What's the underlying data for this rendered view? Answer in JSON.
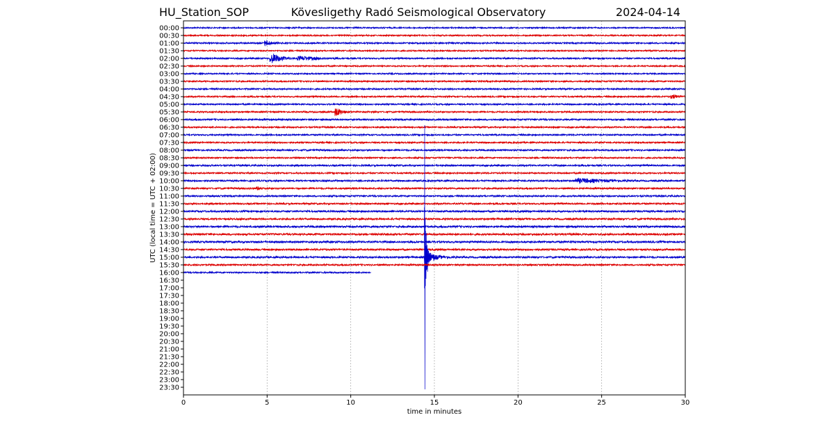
{
  "header": {
    "station": "HU_Station_SOP",
    "observatory": "Kövesligethy Radó Seismological Observatory",
    "date": "2024-04-14"
  },
  "chart_data": {
    "type": "line",
    "title": "Kövesligethy Radó Seismological Observatory",
    "xlabel": "time in minutes",
    "ylabel": "UTC (local time = UTC + 02:00)",
    "xlim": [
      0,
      30
    ],
    "x_ticks": [
      0,
      5,
      10,
      15,
      20,
      25,
      30
    ],
    "vertical_gridlines": [
      5,
      10,
      15,
      20,
      25
    ],
    "row_labels": [
      "00:00",
      "00:30",
      "01:00",
      "01:30",
      "02:00",
      "02:30",
      "03:00",
      "03:30",
      "04:00",
      "04:30",
      "05:00",
      "05:30",
      "06:00",
      "06:30",
      "07:00",
      "07:30",
      "08:00",
      "08:30",
      "09:00",
      "09:30",
      "10:00",
      "10:30",
      "11:00",
      "11:30",
      "12:00",
      "12:30",
      "13:00",
      "13:30",
      "14:00",
      "14:30",
      "15:00",
      "15:30",
      "16:00",
      "16:30",
      "17:00",
      "17:30",
      "18:00",
      "18:30",
      "19:00",
      "19:30",
      "20:00",
      "20:30",
      "21:00",
      "21:30",
      "22:00",
      "22:30",
      "23:00",
      "23:30"
    ],
    "colors": {
      "even_rows": "#0000cc",
      "odd_rows": "#dd0000"
    },
    "series": [
      {
        "start": "00:00",
        "x_end": 30,
        "noise": 0.9
      },
      {
        "start": "00:30",
        "x_end": 30,
        "noise": 0.9
      },
      {
        "start": "01:00",
        "x_end": 30,
        "noise": 1.0,
        "bursts": [
          {
            "x": 5.0,
            "width": 0.8,
            "amp": 3
          }
        ]
      },
      {
        "start": "01:30",
        "x_end": 30,
        "noise": 0.9
      },
      {
        "start": "02:00",
        "x_end": 30,
        "noise": 1.0,
        "bursts": [
          {
            "x": 5.4,
            "width": 1.2,
            "amp": 6
          },
          {
            "x": 7.2,
            "width": 2.0,
            "amp": 2.5
          }
        ]
      },
      {
        "start": "02:30",
        "x_end": 30,
        "noise": 0.9
      },
      {
        "start": "03:00",
        "x_end": 30,
        "noise": 0.9
      },
      {
        "start": "03:30",
        "x_end": 30,
        "noise": 1.0
      },
      {
        "start": "04:00",
        "x_end": 30,
        "noise": 1.0
      },
      {
        "start": "04:30",
        "x_end": 30,
        "noise": 1.0,
        "bursts": [
          {
            "x": 29.3,
            "width": 0.8,
            "amp": 2.5
          }
        ]
      },
      {
        "start": "05:00",
        "x_end": 30,
        "noise": 1.0
      },
      {
        "start": "05:30",
        "x_end": 30,
        "noise": 1.0,
        "bursts": [
          {
            "x": 9.2,
            "width": 0.8,
            "amp": 5
          }
        ]
      },
      {
        "start": "06:00",
        "x_end": 30,
        "noise": 1.1
      },
      {
        "start": "06:30",
        "x_end": 30,
        "noise": 1.0
      },
      {
        "start": "07:00",
        "x_end": 30,
        "noise": 1.0
      },
      {
        "start": "07:30",
        "x_end": 30,
        "noise": 1.0
      },
      {
        "start": "08:00",
        "x_end": 30,
        "noise": 1.1
      },
      {
        "start": "08:30",
        "x_end": 30,
        "noise": 1.0
      },
      {
        "start": "09:00",
        "x_end": 30,
        "noise": 1.1
      },
      {
        "start": "09:30",
        "x_end": 30,
        "noise": 1.0
      },
      {
        "start": "10:00",
        "x_end": 30,
        "noise": 1.1,
        "bursts": [
          {
            "x": 24.0,
            "width": 3.0,
            "amp": 2.5
          }
        ]
      },
      {
        "start": "10:30",
        "x_end": 30,
        "noise": 1.1,
        "bursts": [
          {
            "x": 4.5,
            "width": 0.6,
            "amp": 2
          }
        ]
      },
      {
        "start": "11:00",
        "x_end": 30,
        "noise": 1.1
      },
      {
        "start": "11:30",
        "x_end": 30,
        "noise": 1.1
      },
      {
        "start": "12:00",
        "x_end": 30,
        "noise": 1.2
      },
      {
        "start": "12:30",
        "x_end": 30,
        "noise": 1.2
      },
      {
        "start": "13:00",
        "x_end": 30,
        "noise": 1.3
      },
      {
        "start": "13:30",
        "x_end": 30,
        "noise": 1.3
      },
      {
        "start": "14:00",
        "x_end": 30,
        "noise": 1.3
      },
      {
        "start": "14:30",
        "x_end": 30,
        "noise": 1.2
      },
      {
        "start": "15:00",
        "x_end": 30,
        "noise": 1.2,
        "event": {
          "x": 14.4,
          "amp_up": 190,
          "amp_down": 190
        },
        "coda": {
          "x": 14.4,
          "width": 2.2,
          "amp": 12
        }
      },
      {
        "start": "15:30",
        "x_end": 30,
        "noise": 1.1
      },
      {
        "start": "16:00",
        "x_end": 11.2,
        "noise": 1.0
      }
    ]
  }
}
